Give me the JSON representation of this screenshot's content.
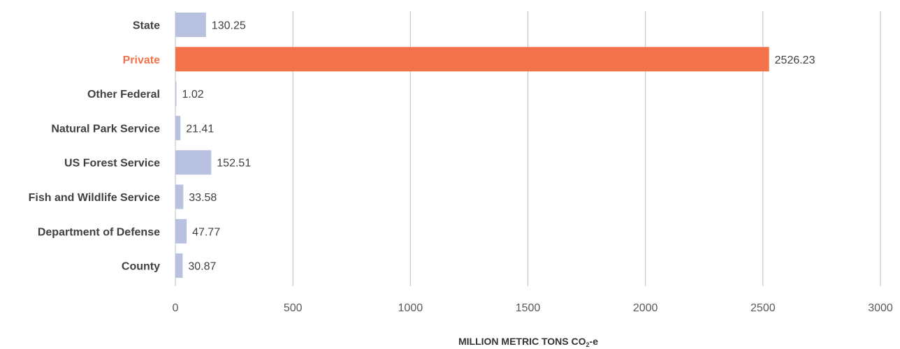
{
  "chart_data": {
    "type": "bar",
    "orientation": "horizontal",
    "categories": [
      "State",
      "Private",
      "Other Federal",
      "Natural Park Service",
      "US Forest Service",
      "Fish and Wildlife Service",
      "Department of Defense",
      "County"
    ],
    "values": [
      130.25,
      2526.23,
      1.02,
      21.41,
      152.51,
      33.58,
      47.77,
      30.87
    ],
    "value_labels": [
      "130.25",
      "2526.23",
      "1.02",
      "21.41",
      "152.51",
      "33.58",
      "47.77",
      "30.87"
    ],
    "highlight_category": "Private",
    "xticks": [
      "0",
      "500",
      "1000",
      "1500",
      "2000",
      "2500",
      "3000"
    ],
    "xlim": [
      0,
      3000
    ],
    "xlabel": {
      "main": "MILLION METRIC TONS CO",
      "subscript": "2",
      "suffix": "-e"
    },
    "ylabel": "",
    "title": "",
    "grid": "vertical",
    "colors": {
      "bar": "#b8c2e0",
      "highlight": "#f2734a",
      "label": "#404040",
      "highlight_label": "#f2734a",
      "grid": "#bfbfbf"
    }
  }
}
